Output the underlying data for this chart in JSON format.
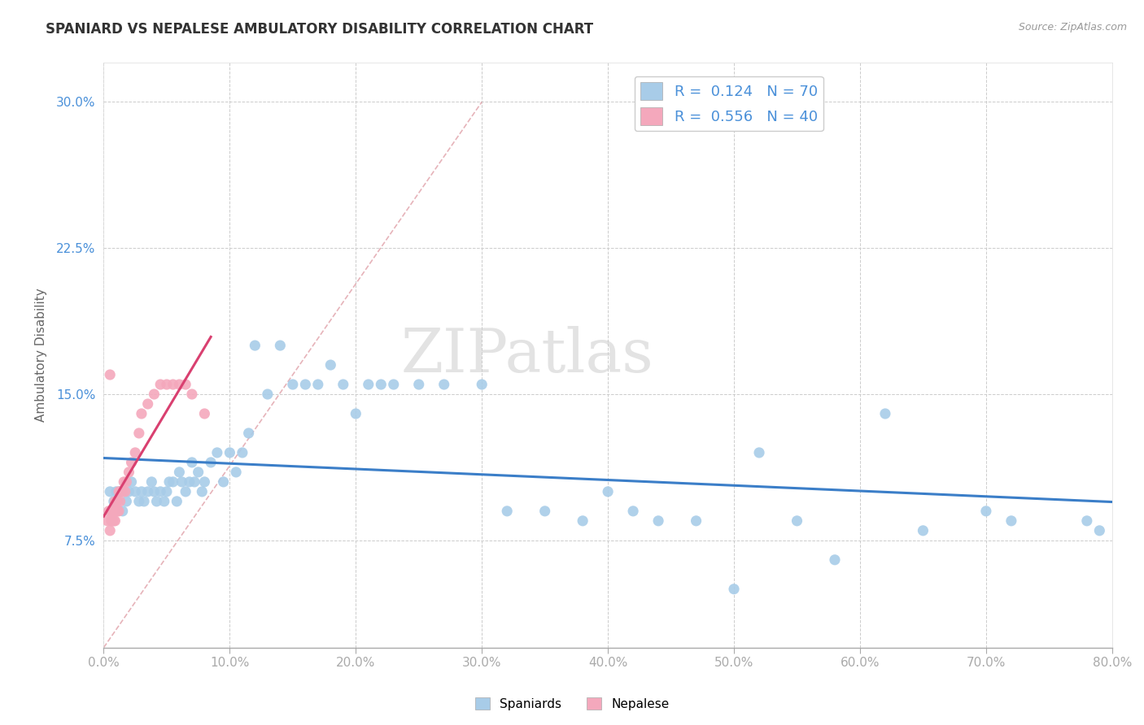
{
  "title": "SPANIARD VS NEPALESE AMBULATORY DISABILITY CORRELATION CHART",
  "source": "Source: ZipAtlas.com",
  "xlim": [
    0.0,
    0.8
  ],
  "ylim": [
    0.02,
    0.32
  ],
  "ylabel": "Ambulatory Disability",
  "legend_labels": [
    "Spaniards",
    "Nepalese"
  ],
  "legend_r": [
    0.124,
    0.556
  ],
  "legend_n": [
    70,
    40
  ],
  "spaniard_color": "#A8CCE8",
  "nepalese_color": "#F4A8BC",
  "spaniard_line_color": "#3B7EC8",
  "nepalese_line_color": "#D94070",
  "ref_line_color": "#E0A0A8",
  "watermark": "ZIPatlas",
  "spaniard_x": [
    0.005,
    0.008,
    0.01,
    0.013,
    0.015,
    0.018,
    0.02,
    0.022,
    0.025,
    0.028,
    0.03,
    0.032,
    0.035,
    0.038,
    0.04,
    0.042,
    0.045,
    0.048,
    0.05,
    0.052,
    0.055,
    0.058,
    0.06,
    0.062,
    0.065,
    0.068,
    0.07,
    0.072,
    0.075,
    0.078,
    0.08,
    0.085,
    0.09,
    0.095,
    0.1,
    0.105,
    0.11,
    0.115,
    0.12,
    0.13,
    0.14,
    0.15,
    0.16,
    0.17,
    0.18,
    0.19,
    0.2,
    0.21,
    0.22,
    0.23,
    0.25,
    0.27,
    0.3,
    0.32,
    0.35,
    0.38,
    0.4,
    0.42,
    0.44,
    0.47,
    0.5,
    0.52,
    0.55,
    0.58,
    0.62,
    0.65,
    0.7,
    0.72,
    0.78,
    0.79
  ],
  "spaniard_y": [
    0.1,
    0.095,
    0.1,
    0.1,
    0.09,
    0.095,
    0.1,
    0.105,
    0.1,
    0.095,
    0.1,
    0.095,
    0.1,
    0.105,
    0.1,
    0.095,
    0.1,
    0.095,
    0.1,
    0.105,
    0.105,
    0.095,
    0.11,
    0.105,
    0.1,
    0.105,
    0.115,
    0.105,
    0.11,
    0.1,
    0.105,
    0.115,
    0.12,
    0.105,
    0.12,
    0.11,
    0.12,
    0.13,
    0.175,
    0.15,
    0.175,
    0.155,
    0.155,
    0.155,
    0.165,
    0.155,
    0.14,
    0.155,
    0.155,
    0.155,
    0.155,
    0.155,
    0.155,
    0.09,
    0.09,
    0.085,
    0.1,
    0.09,
    0.085,
    0.085,
    0.05,
    0.12,
    0.085,
    0.065,
    0.14,
    0.08,
    0.09,
    0.085,
    0.085,
    0.08
  ],
  "nepalese_x": [
    0.003,
    0.004,
    0.005,
    0.006,
    0.006,
    0.007,
    0.007,
    0.008,
    0.008,
    0.009,
    0.009,
    0.009,
    0.01,
    0.01,
    0.011,
    0.011,
    0.012,
    0.012,
    0.013,
    0.013,
    0.014,
    0.015,
    0.016,
    0.017,
    0.018,
    0.02,
    0.022,
    0.025,
    0.028,
    0.03,
    0.035,
    0.04,
    0.045,
    0.05,
    0.055,
    0.06,
    0.065,
    0.07,
    0.08,
    0.005
  ],
  "nepalese_y": [
    0.085,
    0.09,
    0.08,
    0.085,
    0.09,
    0.085,
    0.09,
    0.085,
    0.09,
    0.085,
    0.09,
    0.095,
    0.09,
    0.095,
    0.09,
    0.095,
    0.09,
    0.1,
    0.095,
    0.1,
    0.1,
    0.1,
    0.105,
    0.1,
    0.105,
    0.11,
    0.115,
    0.12,
    0.13,
    0.14,
    0.145,
    0.15,
    0.155,
    0.155,
    0.155,
    0.155,
    0.155,
    0.15,
    0.14,
    0.16
  ]
}
